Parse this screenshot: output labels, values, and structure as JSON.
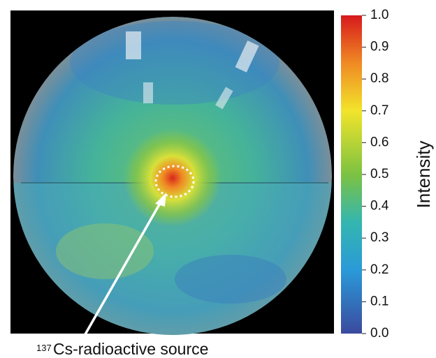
{
  "colorbar": {
    "label": "Intensity",
    "lim": [
      0,
      1
    ],
    "ticks": [
      {
        "value": 0,
        "label": "0.0"
      },
      0.1,
      0.2,
      0.3,
      0.4,
      0.5,
      0.6,
      0.7,
      0.8,
      0.9,
      {
        "value": 1,
        "label": "1.0"
      }
    ]
  },
  "annotation": {
    "superscript": "137",
    "text": "Cs-radioactive source"
  }
}
